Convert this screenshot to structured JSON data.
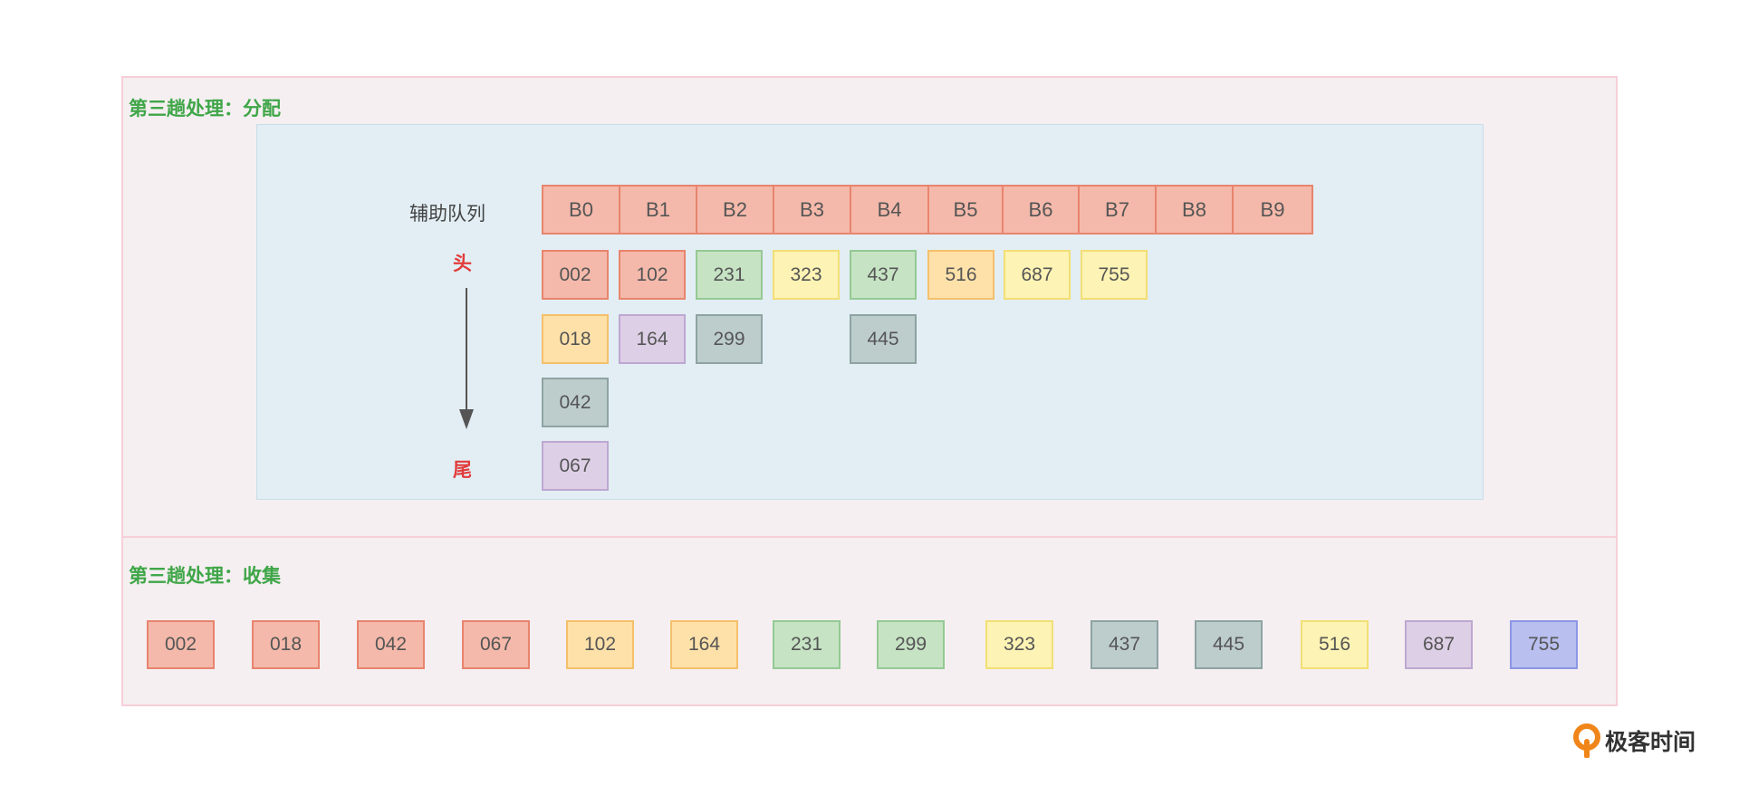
{
  "sections": {
    "distribute_title": "第三趟处理：分配",
    "collect_title": "第三趟处理：收集"
  },
  "queue": {
    "label": "辅助队列",
    "head_label": "头",
    "tail_label": "尾",
    "buckets": [
      "B0",
      "B1",
      "B2",
      "B3",
      "B4",
      "B5",
      "B6",
      "B7",
      "B8",
      "B9"
    ],
    "bucket_contents": [
      [
        "002",
        "018",
        "042",
        "067"
      ],
      [
        "102",
        "164"
      ],
      [
        "231",
        "299"
      ],
      [
        "323"
      ],
      [
        "437",
        "445"
      ],
      [
        "516"
      ],
      [
        "687"
      ],
      [
        "755"
      ],
      [],
      []
    ]
  },
  "collected": [
    "002",
    "018",
    "042",
    "067",
    "102",
    "164",
    "231",
    "299",
    "323",
    "437",
    "445",
    "516",
    "687",
    "755"
  ],
  "colors": {
    "red": "#f4b9aa",
    "orange": "#fde1a9",
    "green": "#c6e3c4",
    "yellow": "#fdf3b4",
    "slate": "#bdcdcc",
    "purple": "#ddd0e6",
    "blue": "#b9bfef",
    "title_green": "#3fa648",
    "head_tail_red": "#e23b3b"
  },
  "logo": {
    "text": "极客时间",
    "icon": "geektime-logo-icon"
  }
}
